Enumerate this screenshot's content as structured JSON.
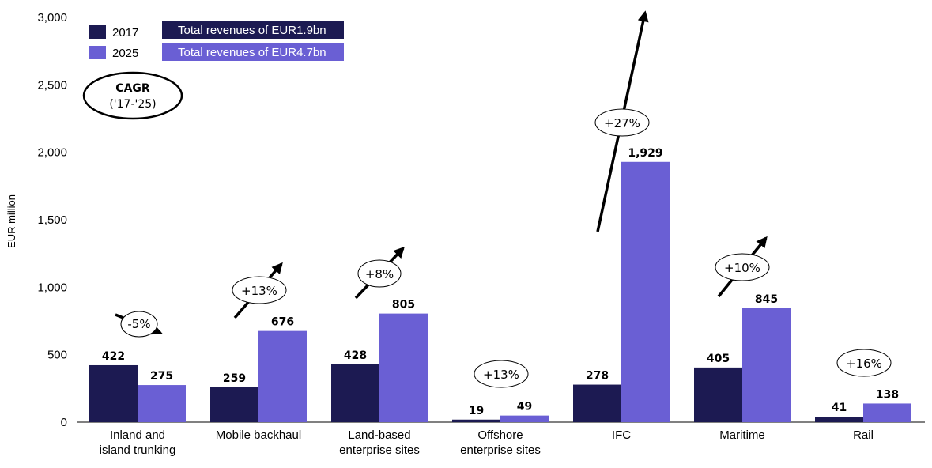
{
  "chart_data": {
    "type": "bar",
    "ylabel": "EUR million",
    "ylim": [
      0,
      3000
    ],
    "yticks": [
      "0",
      "500",
      "1,000",
      "1,500",
      "2,000",
      "2,500",
      "3,000"
    ],
    "categories": [
      [
        "Inland and",
        "island trunking"
      ],
      [
        "Mobile backhaul"
      ],
      [
        "Land-based",
        "enterprise sites"
      ],
      [
        "Offshore",
        "enterprise sites"
      ],
      [
        "IFC"
      ],
      [
        "Maritime"
      ],
      [
        "Rail"
      ]
    ],
    "series": [
      {
        "name": "2017",
        "values": [
          422,
          259,
          428,
          19,
          278,
          405,
          41
        ],
        "labels": [
          "422",
          "259",
          "428",
          "19",
          "278",
          "405",
          "41"
        ],
        "color": "#1c1a52"
      },
      {
        "name": "2025",
        "values": [
          275,
          676,
          805,
          49,
          1929,
          845,
          138
        ],
        "labels": [
          "275",
          "676",
          "805",
          "49",
          "1,929",
          "845",
          "138"
        ],
        "color": "#6a5fd4"
      }
    ],
    "legend": {
      "placement": "top-left",
      "totals": [
        "Total revenues of EUR1.9bn",
        "Total revenues of EUR4.7bn"
      ]
    },
    "cagr_header": [
      "CAGR",
      "('17-'25)"
    ],
    "cagr": [
      "-5%",
      "+13%",
      "+8%",
      "+13%",
      "+27%",
      "+10%",
      "+16%"
    ],
    "grid": false
  }
}
